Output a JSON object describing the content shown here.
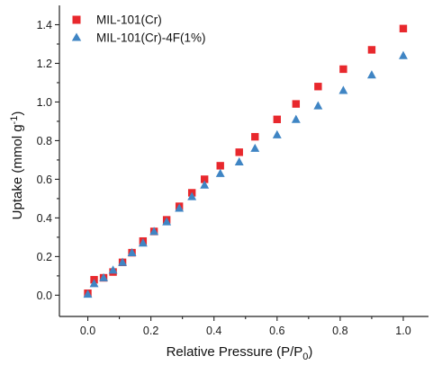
{
  "chart_data": {
    "type": "scatter",
    "xlabel": "Relative Pressure (P/P",
    "xlabel_sub": "0",
    "xlabel_end": ")",
    "ylabel": "Uptake (mmol g",
    "ylabel_sup": "-1",
    "ylabel_end": ")",
    "xlim": [
      -0.09,
      1.08
    ],
    "ylim": [
      -0.11,
      1.5
    ],
    "xticks": [
      0.0,
      0.2,
      0.4,
      0.6,
      0.8,
      1.0
    ],
    "xtick_labels": [
      "0.0",
      "0.2",
      "0.4",
      "0.6",
      "0.8",
      "1.0"
    ],
    "yticks": [
      0.0,
      0.2,
      0.4,
      0.6,
      0.8,
      1.0,
      1.2,
      1.4
    ],
    "ytick_labels": [
      "0.0",
      "0.2",
      "0.4",
      "0.6",
      "0.8",
      "1.0",
      "1.2",
      "1.4"
    ],
    "grid": false,
    "legend_position": "top-left",
    "series": [
      {
        "name": "MIL-101(Cr)",
        "marker": "square",
        "color": "#e8282d",
        "x": [
          0.0,
          0.02,
          0.05,
          0.08,
          0.11,
          0.14,
          0.175,
          0.21,
          0.25,
          0.29,
          0.33,
          0.37,
          0.42,
          0.48,
          0.53,
          0.6,
          0.66,
          0.73,
          0.81,
          0.9,
          1.0
        ],
        "y": [
          0.01,
          0.08,
          0.09,
          0.12,
          0.17,
          0.22,
          0.28,
          0.33,
          0.39,
          0.46,
          0.53,
          0.6,
          0.67,
          0.74,
          0.82,
          0.91,
          0.99,
          1.08,
          1.17,
          1.27,
          1.38
        ]
      },
      {
        "name": "MIL-101(Cr)-4F(1%)",
        "marker": "triangle",
        "color": "#3f85c4",
        "x": [
          0.0,
          0.02,
          0.05,
          0.08,
          0.11,
          0.14,
          0.175,
          0.21,
          0.25,
          0.29,
          0.33,
          0.37,
          0.42,
          0.48,
          0.53,
          0.6,
          0.66,
          0.73,
          0.81,
          0.9,
          1.0
        ],
        "y": [
          0.005,
          0.06,
          0.09,
          0.13,
          0.17,
          0.22,
          0.27,
          0.33,
          0.38,
          0.45,
          0.51,
          0.57,
          0.63,
          0.69,
          0.76,
          0.83,
          0.91,
          0.98,
          1.06,
          1.14,
          1.24
        ]
      }
    ]
  }
}
